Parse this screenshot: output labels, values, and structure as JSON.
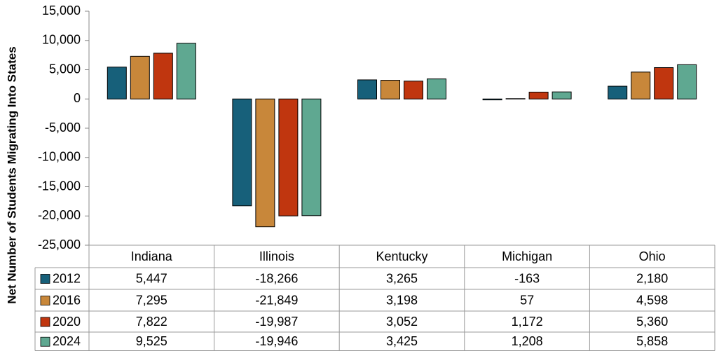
{
  "chart_data": {
    "type": "bar",
    "y_label": "Net Number of Students Migrating Into States",
    "categories": [
      "Indiana",
      "Illinois",
      "Kentucky",
      "Michigan",
      "Ohio"
    ],
    "series": [
      {
        "name": "2012",
        "color": "#17607a",
        "values": [
          5447,
          -18266,
          3265,
          -163,
          2180
        ],
        "value_labels": [
          "5,447",
          "-18,266",
          "3,265",
          "-163",
          "2,180"
        ]
      },
      {
        "name": "2016",
        "color": "#c8873a",
        "values": [
          7295,
          -21849,
          3198,
          57,
          4598
        ],
        "value_labels": [
          "7,295",
          "-21,849",
          "3,198",
          "57",
          "4,598"
        ]
      },
      {
        "name": "2020",
        "color": "#c0360f",
        "values": [
          7822,
          -19987,
          3052,
          1172,
          5360
        ],
        "value_labels": [
          "7,822",
          "-19,987",
          "3,052",
          "1,172",
          "5,360"
        ]
      },
      {
        "name": "2024",
        "color": "#5fa891",
        "values": [
          9525,
          -19946,
          3425,
          1208,
          5858
        ],
        "value_labels": [
          "9,525",
          "-19,946",
          "3,425",
          "1,208",
          "5,858"
        ]
      }
    ],
    "ylim": [
      -25000,
      15000
    ],
    "yticks": [
      {
        "value": 15000,
        "label": "15,000"
      },
      {
        "value": 10000,
        "label": "10,000"
      },
      {
        "value": 5000,
        "label": "5,000"
      },
      0,
      {
        "value": -5000,
        "label": "-5,000"
      },
      {
        "value": -10000,
        "label": "-10,000"
      },
      {
        "value": -15000,
        "label": "-15,000"
      },
      {
        "value": -20000,
        "label": "-20,000"
      },
      {
        "value": -25000,
        "label": "-25,000"
      }
    ]
  }
}
